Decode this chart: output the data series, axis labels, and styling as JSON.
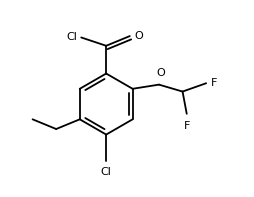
{
  "background": "#ffffff",
  "line_color": "#000000",
  "line_width": 1.3,
  "font_size": 8.0,
  "figsize": [
    2.54,
    1.97
  ],
  "dpi": 100,
  "xlim": [
    0.0,
    8.5
  ],
  "ylim": [
    -0.5,
    6.5
  ]
}
